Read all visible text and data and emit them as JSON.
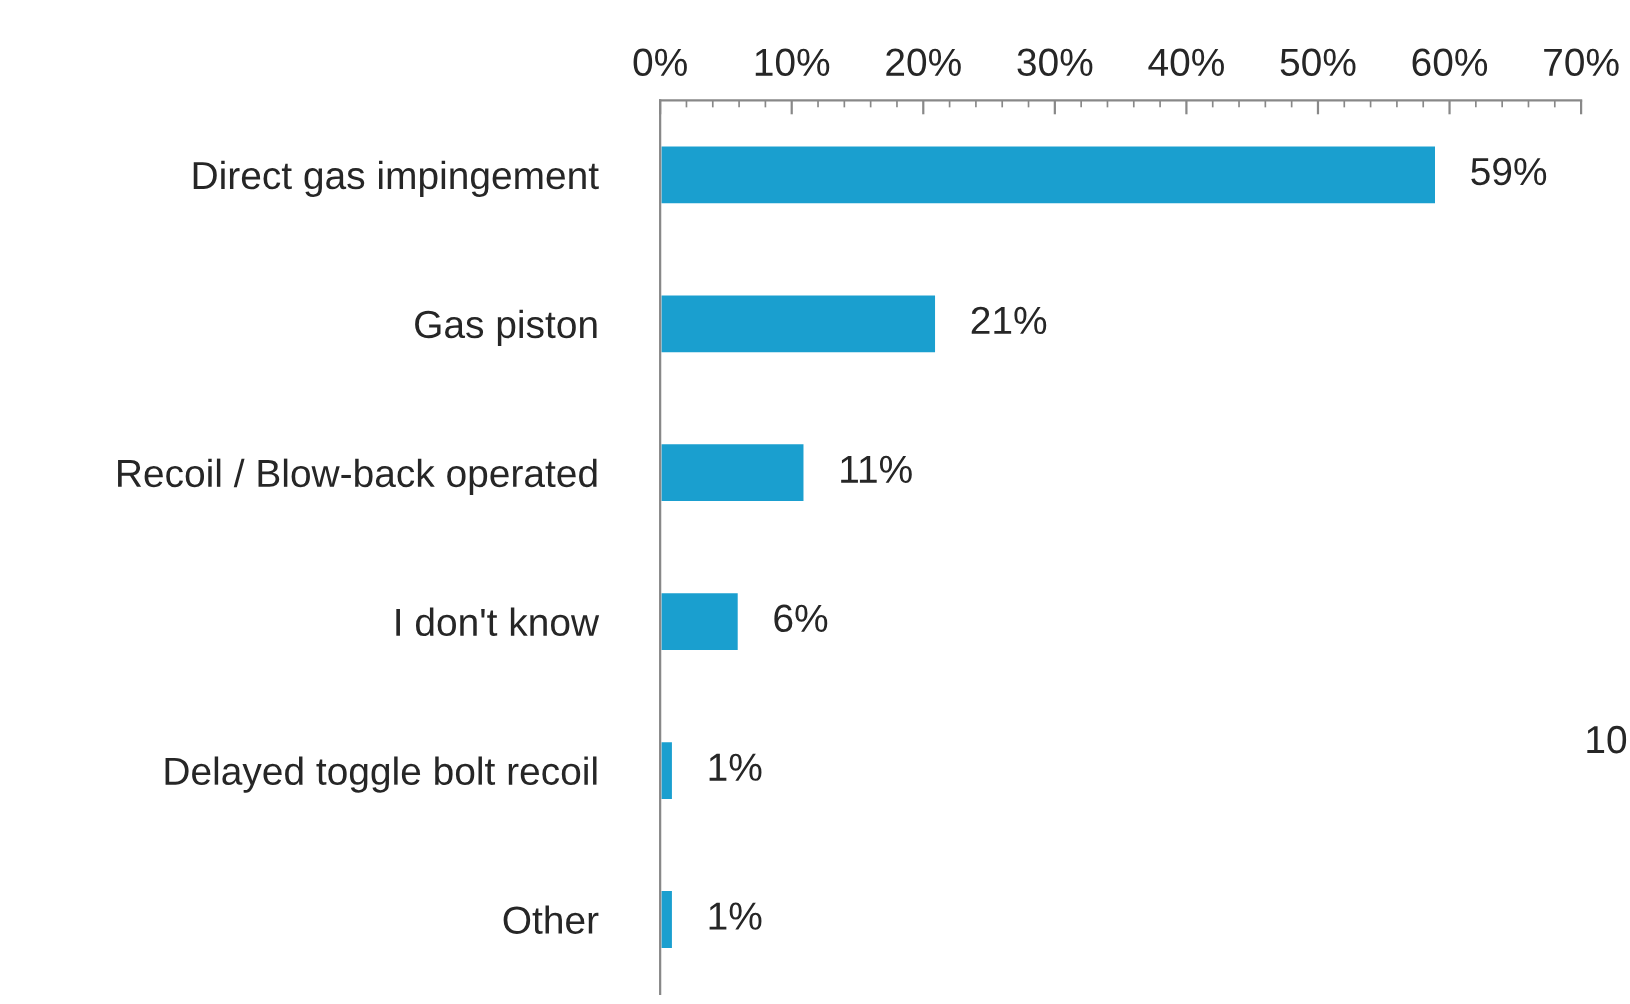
{
  "chart_data": {
    "type": "bar",
    "orientation": "horizontal",
    "categories": [
      "Direct gas impingement",
      "Gas piston",
      "Recoil / Blow-back operated",
      "I don't know",
      "Delayed toggle bolt recoil",
      "Other"
    ],
    "values": [
      59,
      21,
      11,
      6,
      1,
      1
    ],
    "value_labels": [
      "59%",
      "21%",
      "11%",
      "6%",
      "1%",
      "1%"
    ],
    "color": "#1a9fcf",
    "xlim": [
      0,
      70
    ],
    "xticks": [
      {
        "value": 0,
        "label": "0%"
      },
      {
        "value": 10,
        "label": "10%"
      },
      {
        "value": 20,
        "label": "20%"
      },
      {
        "value": 30,
        "label": "30%"
      },
      {
        "value": 40,
        "label": "40%"
      },
      {
        "value": 50,
        "label": "50%"
      },
      {
        "value": 60,
        "label": "60%"
      },
      {
        "value": 70,
        "label": "70%"
      }
    ],
    "grid": false,
    "legend": false,
    "annotations": [
      "10"
    ]
  }
}
